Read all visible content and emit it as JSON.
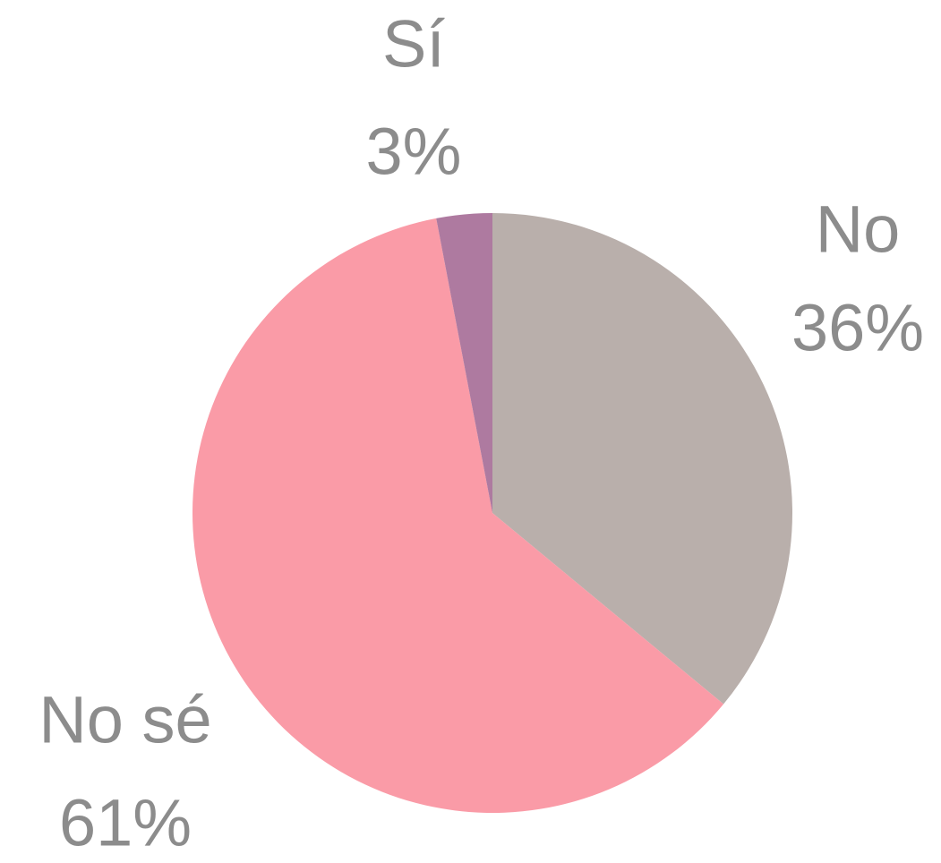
{
  "chart_data": {
    "type": "pie",
    "categories": [
      "No",
      "No sé",
      "Sí"
    ],
    "values": [
      36,
      61,
      3
    ],
    "value_labels": [
      "36%",
      "61%",
      "3%"
    ],
    "colors": [
      "#b9afab",
      "#fa9ba7",
      "#ae7aa0"
    ]
  }
}
